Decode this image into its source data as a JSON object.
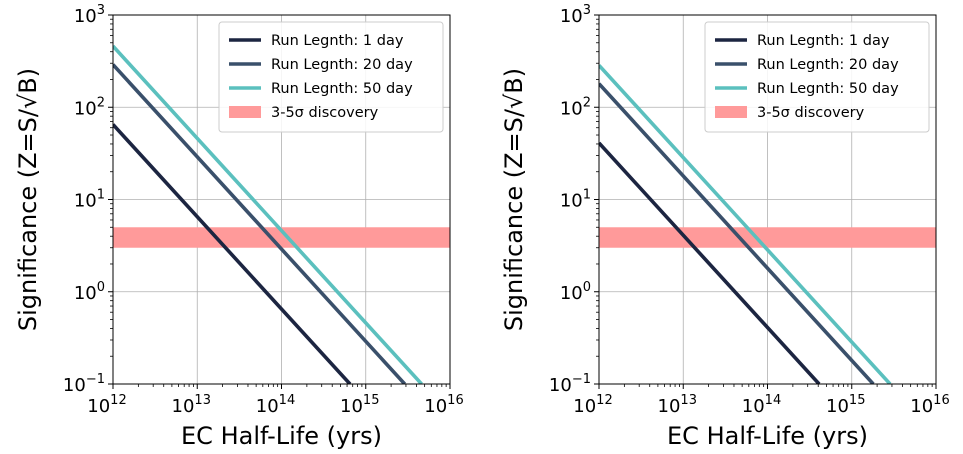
{
  "chart_data": [
    {
      "type": "line",
      "xlabel": "EC Half-Life (yrs)",
      "ylabel": "Significance (Z=S/√B)",
      "xscale": "log",
      "yscale": "log",
      "xlim": [
        1000000000000.0,
        1e+16
      ],
      "ylim": [
        0.1,
        1000
      ],
      "grid": true,
      "legend_position": "top-right",
      "x_ticks": [
        "10^12",
        "10^13",
        "10^14",
        "10^15",
        "10^16"
      ],
      "y_ticks": [
        "10^-1",
        "10^0",
        "10^1",
        "10^2",
        "10^3"
      ],
      "series": [
        {
          "name": "Run Legnth: 1 day",
          "color": "#1c2541",
          "x": [
            1000000000000.0,
            650000000000000.0
          ],
          "y": [
            65,
            0.1
          ]
        },
        {
          "name": "Run Legnth: 20 day",
          "color": "#3a506b",
          "x": [
            1000000000000.0,
            2900000000000000.0
          ],
          "y": [
            290,
            0.1
          ]
        },
        {
          "name": "Run Legnth: 50 day",
          "color": "#5bc0be",
          "x": [
            1000000000000.0,
            4600000000000000.0
          ],
          "y": [
            460,
            0.1
          ]
        }
      ],
      "band": {
        "name": "3-5σ discovery",
        "color": "#ff9a9a",
        "y_range": [
          3,
          5
        ]
      }
    },
    {
      "type": "line",
      "xlabel": "EC Half-Life (yrs)",
      "ylabel": "Significance (Z=S/√B)",
      "xscale": "log",
      "yscale": "log",
      "xlim": [
        1000000000000.0,
        1e+16
      ],
      "ylim": [
        0.1,
        1000
      ],
      "grid": true,
      "legend_position": "top-right",
      "x_ticks": [
        "10^12",
        "10^13",
        "10^14",
        "10^15",
        "10^16"
      ],
      "y_ticks": [
        "10^-1",
        "10^0",
        "10^1",
        "10^2",
        "10^3"
      ],
      "series": [
        {
          "name": "Run Legnth: 1 day",
          "color": "#1c2541",
          "x": [
            1000000000000.0,
            410000000000000.0
          ],
          "y": [
            41,
            0.1
          ]
        },
        {
          "name": "Run Legnth: 20 day",
          "color": "#3a506b",
          "x": [
            1000000000000.0,
            1800000000000000.0
          ],
          "y": [
            180,
            0.1
          ]
        },
        {
          "name": "Run Legnth: 50 day",
          "color": "#5bc0be",
          "x": [
            1000000000000.0,
            2850000000000000.0
          ],
          "y": [
            285,
            0.1
          ]
        }
      ],
      "band": {
        "name": "3-5σ discovery",
        "color": "#ff9a9a",
        "y_range": [
          3,
          5
        ]
      }
    }
  ]
}
